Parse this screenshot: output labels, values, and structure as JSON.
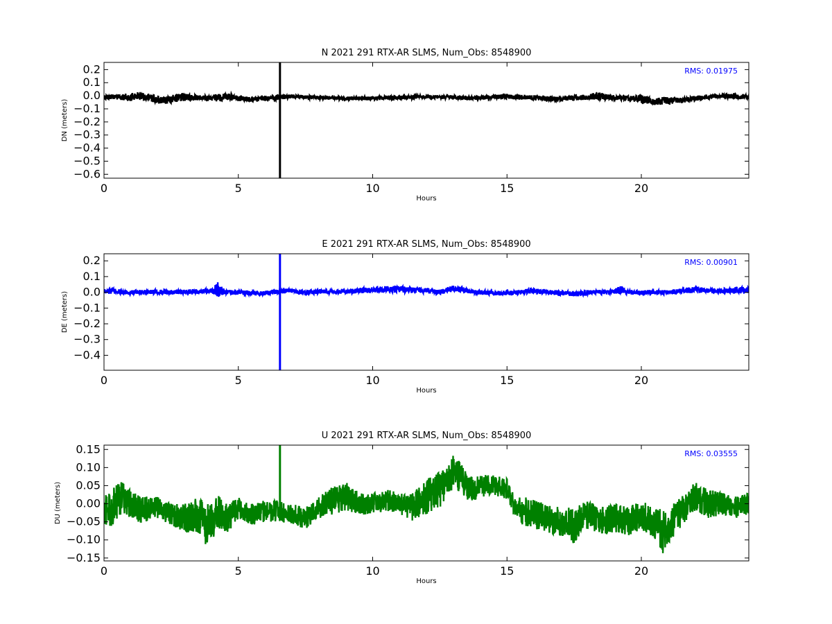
{
  "chart_data": [
    {
      "type": "line",
      "title": "N 2021 291 RTX-AR  SLMS, Num_Obs: 8548900",
      "xlabel": "Hours",
      "ylabel": "DN (meters)",
      "xlim": [
        0,
        24
      ],
      "ylim": [
        -0.63,
        0.255
      ],
      "xticks": [
        0,
        5,
        10,
        15,
        20
      ],
      "yticks": [
        0.2,
        0.1,
        0.0,
        -0.1,
        -0.2,
        -0.3,
        -0.4,
        -0.5,
        -0.6
      ],
      "ytick_labels": [
        "0.2",
        "0.1",
        "0.0",
        "−0.1",
        "−0.2",
        "−0.3",
        "−0.4",
        "−0.5",
        "−0.6"
      ],
      "color": "#000000",
      "rms_label": "RMS:  0.01975",
      "rms_color": "#0000ff",
      "grid": false,
      "series": [
        {
          "x": [
            0,
            0.5,
            1,
            1.3,
            1.6,
            2,
            2.3,
            2.6,
            3,
            3.5,
            4,
            4.3,
            4.6,
            5,
            5.5,
            6,
            6.5,
            7,
            7.5,
            8,
            8.5,
            9,
            9.5,
            10,
            10.5,
            11,
            11.5,
            12,
            12.5,
            13,
            13.5,
            14,
            14.5,
            15,
            15.5,
            16,
            16.5,
            17,
            17.5,
            18,
            18.4,
            18.8,
            19,
            19.5,
            20,
            20.5,
            21,
            21.5,
            22,
            22.5,
            23,
            23.5,
            24
          ],
          "center": [
            -0.01,
            -0.01,
            -0.01,
            0.0,
            -0.01,
            -0.03,
            -0.035,
            -0.02,
            -0.01,
            -0.015,
            -0.02,
            -0.015,
            -0.005,
            -0.02,
            -0.03,
            -0.02,
            -0.01,
            -0.005,
            -0.01,
            -0.015,
            -0.015,
            -0.02,
            -0.02,
            -0.02,
            -0.015,
            -0.015,
            -0.01,
            -0.01,
            -0.01,
            -0.01,
            -0.02,
            -0.015,
            -0.01,
            -0.005,
            -0.01,
            -0.015,
            -0.02,
            -0.025,
            -0.015,
            -0.01,
            0.0,
            -0.01,
            -0.015,
            -0.02,
            -0.025,
            -0.04,
            -0.04,
            -0.035,
            -0.02,
            -0.01,
            0.0,
            -0.005,
            -0.01
          ],
          "spread": [
            0.02,
            0.02,
            0.03,
            0.03,
            0.03,
            0.03,
            0.03,
            0.03,
            0.03,
            0.02,
            0.02,
            0.03,
            0.03,
            0.02,
            0.02,
            0.02,
            0.02,
            0.015,
            0.015,
            0.015,
            0.015,
            0.015,
            0.015,
            0.015,
            0.015,
            0.015,
            0.015,
            0.015,
            0.015,
            0.015,
            0.015,
            0.015,
            0.015,
            0.02,
            0.02,
            0.02,
            0.02,
            0.02,
            0.02,
            0.02,
            0.03,
            0.02,
            0.02,
            0.02,
            0.03,
            0.03,
            0.03,
            0.02,
            0.02,
            0.015,
            0.015,
            0.02,
            0.02
          ]
        }
      ],
      "spike": {
        "x": 6.55,
        "min": -0.63,
        "max": 0.255
      }
    },
    {
      "type": "line",
      "title": "E 2021 291 RTX-AR  SLMS, Num_Obs: 8548900",
      "xlabel": "Hours",
      "ylabel": "DE (meters)",
      "xlim": [
        0,
        24
      ],
      "ylim": [
        -0.495,
        0.245
      ],
      "xticks": [
        0,
        5,
        10,
        15,
        20
      ],
      "yticks": [
        0.2,
        0.1,
        0.0,
        -0.1,
        -0.2,
        -0.3,
        -0.4
      ],
      "ytick_labels": [
        "0.2",
        "0.1",
        "0.0",
        "−0.1",
        "−0.2",
        "−0.3",
        "−0.4"
      ],
      "color": "#0000ff",
      "rms_label": "RMS:  0.00901",
      "rms_color": "#0000ff",
      "grid": false,
      "series": [
        {
          "x": [
            0,
            0.5,
            1,
            1.5,
            2,
            2.5,
            3,
            3.5,
            4,
            4.25,
            4.5,
            5,
            5.5,
            6,
            6.5,
            7,
            7.5,
            8,
            8.5,
            9,
            9.5,
            10,
            10.5,
            11,
            11.5,
            12,
            12.5,
            13,
            13.5,
            14,
            14.5,
            15,
            15.5,
            16,
            16.5,
            17,
            17.5,
            18,
            18.5,
            19,
            19.2,
            19.5,
            20,
            20.5,
            21,
            21.5,
            22,
            22.5,
            23,
            23.5,
            24
          ],
          "center": [
            0.01,
            0.005,
            0.0,
            0.0,
            0.005,
            0.0,
            0.005,
            0.005,
            0.01,
            0.02,
            0.0,
            0.0,
            -0.005,
            -0.005,
            0.005,
            0.01,
            0.0,
            0.005,
            0.005,
            0.005,
            0.01,
            0.015,
            0.02,
            0.02,
            0.015,
            0.01,
            0.0,
            0.025,
            0.01,
            0.0,
            -0.005,
            -0.005,
            0.0,
            0.01,
            0.005,
            -0.005,
            -0.01,
            0.0,
            0.0,
            0.005,
            0.02,
            0.0,
            0.0,
            0.0,
            0.0,
            0.01,
            0.015,
            0.01,
            0.01,
            0.015,
            0.015
          ],
          "spread": [
            0.02,
            0.015,
            0.015,
            0.015,
            0.015,
            0.015,
            0.015,
            0.015,
            0.015,
            0.05,
            0.015,
            0.015,
            0.015,
            0.015,
            0.015,
            0.015,
            0.015,
            0.015,
            0.015,
            0.015,
            0.015,
            0.02,
            0.02,
            0.02,
            0.02,
            0.015,
            0.015,
            0.02,
            0.015,
            0.015,
            0.015,
            0.015,
            0.015,
            0.015,
            0.015,
            0.015,
            0.015,
            0.015,
            0.015,
            0.015,
            0.025,
            0.015,
            0.015,
            0.015,
            0.015,
            0.015,
            0.02,
            0.015,
            0.015,
            0.02,
            0.02
          ]
        }
      ],
      "spike": {
        "x": 6.55,
        "min": -0.495,
        "max": 0.245
      }
    },
    {
      "type": "line",
      "title": "U 2021 291 RTX-AR  SLMS, Num_Obs: 8548900",
      "xlabel": "Hours",
      "ylabel": "DU (meters)",
      "xlim": [
        0,
        24
      ],
      "ylim": [
        -0.158,
        0.162
      ],
      "xticks": [
        0,
        5,
        10,
        15,
        20
      ],
      "yticks": [
        0.15,
        0.1,
        0.05,
        0.0,
        -0.05,
        -0.1,
        -0.15
      ],
      "ytick_labels": [
        "0.15",
        "0.10",
        "0.05",
        "0.00",
        "−0.05",
        "−0.10",
        "−0.15"
      ],
      "color": "#008000",
      "rms_label": "RMS:  0.03555",
      "rms_color": "#0000ff",
      "grid": false,
      "series": [
        {
          "x": [
            0,
            0.3,
            0.6,
            1,
            1.5,
            2,
            2.5,
            3,
            3.5,
            3.8,
            4,
            4.3,
            4.6,
            5,
            5.5,
            6,
            6.5,
            7,
            7.5,
            8,
            8.5,
            9,
            9.5,
            10,
            10.5,
            11,
            11.5,
            12,
            12.5,
            12.8,
            13,
            13.3,
            13.6,
            14,
            14.5,
            15,
            15.3,
            15.6,
            16,
            16.5,
            17,
            17.5,
            18,
            18.5,
            19,
            19.5,
            20,
            20.5,
            20.8,
            21,
            21.5,
            22,
            22.5,
            23,
            23.5,
            24
          ],
          "center": [
            -0.03,
            -0.01,
            0.02,
            0.0,
            -0.02,
            -0.01,
            -0.03,
            -0.04,
            -0.03,
            -0.06,
            -0.05,
            -0.02,
            -0.04,
            -0.01,
            -0.03,
            -0.02,
            -0.02,
            -0.03,
            -0.04,
            -0.01,
            0.01,
            0.02,
            0.0,
            0.0,
            0.01,
            0.0,
            -0.01,
            0.02,
            0.04,
            0.06,
            0.09,
            0.07,
            0.04,
            0.05,
            0.05,
            0.04,
            -0.01,
            -0.02,
            -0.03,
            -0.04,
            -0.05,
            -0.06,
            -0.03,
            -0.05,
            -0.04,
            -0.05,
            -0.03,
            -0.05,
            -0.08,
            -0.06,
            -0.02,
            0.02,
            0.0,
            0.0,
            -0.01,
            0.0
          ],
          "spread": [
            0.05,
            0.05,
            0.05,
            0.04,
            0.04,
            0.03,
            0.03,
            0.04,
            0.05,
            0.06,
            0.05,
            0.05,
            0.04,
            0.03,
            0.03,
            0.03,
            0.03,
            0.03,
            0.03,
            0.03,
            0.04,
            0.04,
            0.03,
            0.03,
            0.03,
            0.03,
            0.04,
            0.05,
            0.05,
            0.04,
            0.05,
            0.04,
            0.04,
            0.03,
            0.03,
            0.03,
            0.03,
            0.04,
            0.04,
            0.04,
            0.04,
            0.05,
            0.04,
            0.04,
            0.04,
            0.04,
            0.04,
            0.05,
            0.06,
            0.05,
            0.04,
            0.04,
            0.04,
            0.03,
            0.03,
            0.03
          ]
        }
      ],
      "spike": {
        "x": 6.55,
        "min": -0.04,
        "max": 0.162
      }
    }
  ]
}
